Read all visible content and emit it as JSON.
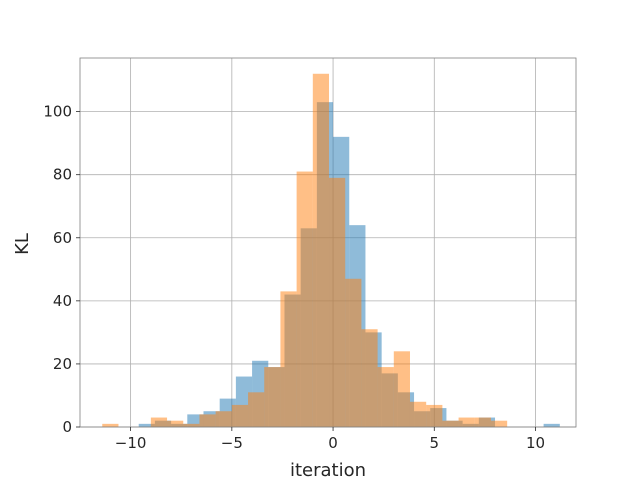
{
  "chart_data": {
    "type": "bar",
    "subtype": "overlapping-histogram",
    "title": "",
    "xlabel": "iteration",
    "ylabel": "KL",
    "xlim": [
      -12.5,
      12
    ],
    "ylim": [
      0,
      117
    ],
    "xticks": [
      -10,
      -5,
      0,
      5,
      10
    ],
    "yticks": [
      0,
      20,
      40,
      60,
      80,
      100
    ],
    "xtick_labels": [
      "−10",
      "−5",
      "0",
      "5",
      "10"
    ],
    "ytick_labels": [
      "0",
      "20",
      "40",
      "60",
      "80",
      "100"
    ],
    "grid": true,
    "legend": "none",
    "series": [
      {
        "color": "#1f77b4",
        "alpha": 0.5,
        "bins": [
          [
            -9.6,
            -8.8,
            1
          ],
          [
            -8.8,
            -8.0,
            2
          ],
          [
            -8.0,
            -7.2,
            1
          ],
          [
            -7.2,
            -6.4,
            4
          ],
          [
            -6.4,
            -5.6,
            5
          ],
          [
            -5.6,
            -4.8,
            9
          ],
          [
            -4.8,
            -4.0,
            16
          ],
          [
            -4.0,
            -3.2,
            21
          ],
          [
            -3.2,
            -2.4,
            19
          ],
          [
            -2.4,
            -1.6,
            42
          ],
          [
            -1.6,
            -0.8,
            63
          ],
          [
            -0.8,
            0.0,
            103
          ],
          [
            0.0,
            0.8,
            92
          ],
          [
            0.8,
            1.6,
            64
          ],
          [
            1.6,
            2.4,
            30
          ],
          [
            2.4,
            3.2,
            17
          ],
          [
            3.2,
            4.0,
            11
          ],
          [
            4.0,
            4.8,
            5
          ],
          [
            4.8,
            5.6,
            6
          ],
          [
            5.6,
            6.4,
            2
          ],
          [
            6.4,
            7.2,
            1
          ],
          [
            7.2,
            8.0,
            3
          ],
          [
            8.0,
            8.8,
            0
          ],
          [
            8.8,
            9.6,
            0
          ],
          [
            9.6,
            10.4,
            0
          ],
          [
            10.4,
            11.2,
            1
          ]
        ]
      },
      {
        "color": "#ff7f0e",
        "alpha": 0.5,
        "bins": [
          [
            -11.4,
            -10.6,
            1
          ],
          [
            -10.6,
            -9.8,
            0
          ],
          [
            -9.8,
            -9.0,
            0
          ],
          [
            -9.0,
            -8.2,
            3
          ],
          [
            -8.2,
            -7.4,
            2
          ],
          [
            -7.4,
            -6.6,
            1
          ],
          [
            -6.6,
            -5.8,
            4
          ],
          [
            -5.8,
            -5.0,
            5
          ],
          [
            -5.0,
            -4.2,
            7
          ],
          [
            -4.2,
            -3.4,
            11
          ],
          [
            -3.4,
            -2.6,
            19
          ],
          [
            -2.6,
            -1.8,
            43
          ],
          [
            -1.8,
            -1.0,
            81
          ],
          [
            -1.0,
            -0.2,
            112
          ],
          [
            -0.2,
            0.6,
            79
          ],
          [
            0.6,
            1.4,
            47
          ],
          [
            1.4,
            2.2,
            31
          ],
          [
            2.2,
            3.0,
            19
          ],
          [
            3.0,
            3.8,
            24
          ],
          [
            3.8,
            4.6,
            8
          ],
          [
            4.6,
            5.4,
            7
          ],
          [
            5.4,
            6.2,
            2
          ],
          [
            6.2,
            7.0,
            3
          ],
          [
            7.0,
            7.8,
            3
          ],
          [
            7.8,
            8.6,
            2
          ]
        ]
      }
    ]
  }
}
